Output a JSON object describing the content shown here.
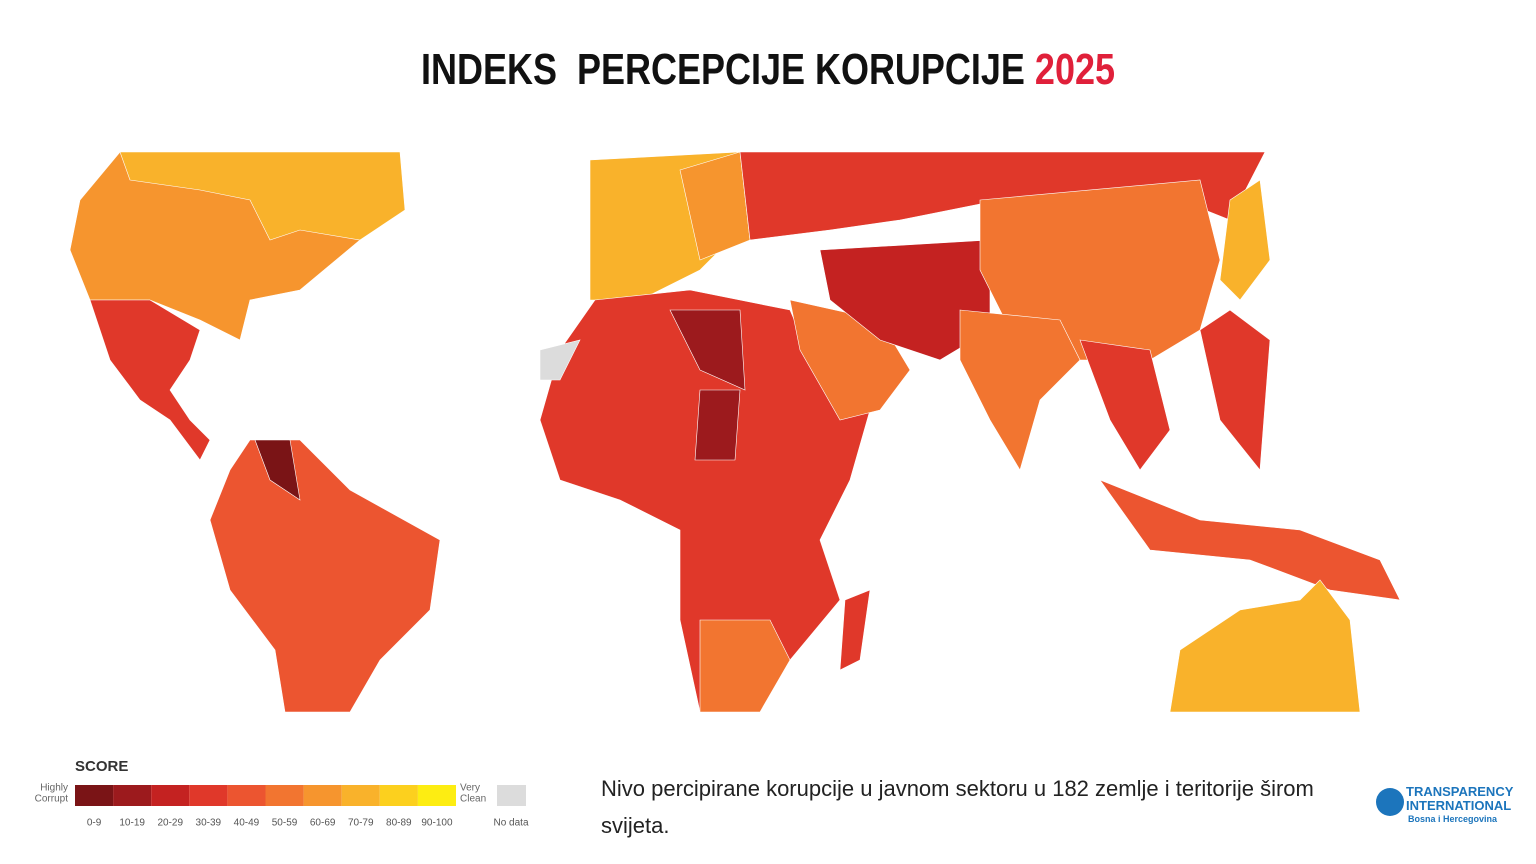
{
  "header": {
    "title": "INDEKS  PERCEPCIJE KORUPCIJE",
    "year": "2025"
  },
  "legend": {
    "title": "SCORE",
    "low_label": [
      "Highly",
      "Corrupt"
    ],
    "high_label": [
      "Very",
      "Clean"
    ],
    "items": [
      {
        "label": "0-9",
        "color": "#7a1416"
      },
      {
        "label": "10-19",
        "color": "#9c1a1d"
      },
      {
        "label": "20-29",
        "color": "#c42221"
      },
      {
        "label": "30-39",
        "color": "#e0382a"
      },
      {
        "label": "40-49",
        "color": "#ec5530"
      },
      {
        "label": "50-59",
        "color": "#f27530"
      },
      {
        "label": "60-69",
        "color": "#f6952e"
      },
      {
        "label": "70-79",
        "color": "#f9b22b"
      },
      {
        "label": "80-89",
        "color": "#fcd01e"
      },
      {
        "label": "90-100",
        "color": "#fded12"
      }
    ],
    "no_data": {
      "label": "No data",
      "color": "#dcdcdc"
    }
  },
  "description": "Nivo percipirane korupcije u javnom sektoru u 182 zemlje i teritorije širom svijeta.",
  "logo": {
    "name": [
      "TRANSPARENCY",
      "INTERNATIONAL"
    ],
    "chapter": "Bosna i Hercegovina"
  }
}
